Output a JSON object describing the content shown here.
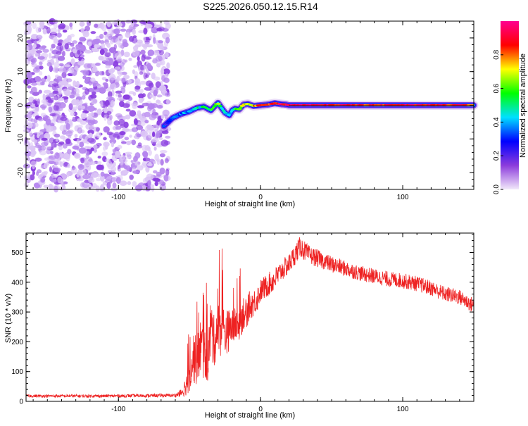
{
  "title": "S225.2026.050.12.15.R14",
  "chart_data": [
    {
      "type": "heatmap",
      "name": "spectrogram",
      "xlabel": "Height of straight line (km)",
      "ylabel": "Frequency (Hz)",
      "xlim": [
        -165,
        150
      ],
      "ylim": [
        -25,
        25
      ],
      "xticks": [
        -100,
        0,
        100
      ],
      "xtick_labels": [
        "-100",
        "0",
        "100"
      ],
      "yticks": [
        -20,
        -10,
        0,
        10,
        20
      ],
      "ytick_labels": [
        "-20",
        "-10",
        "0",
        "10",
        "20"
      ],
      "colorbar": {
        "label": "Normalized spectral amplitude",
        "range": [
          0,
          1
        ],
        "ticks": [
          0,
          0.2,
          0.4,
          0.6,
          0.8
        ],
        "tick_labels": [
          "0.0",
          "0.2",
          "0.4",
          "0.6",
          "0.8"
        ],
        "colors": [
          "#f2e8fa",
          "#8c3cdc",
          "#0000ff",
          "#00e0ff",
          "#00ff00",
          "#ffff00",
          "#ff0000",
          "#ff0090"
        ]
      },
      "noise_region": {
        "x_range": [
          -165,
          -65
        ],
        "y_range": [
          -25,
          25
        ],
        "level": 0.1
      },
      "signal_track": {
        "x": [
          -68,
          -62,
          -56,
          -50,
          -45,
          -40,
          -35,
          -30,
          -25,
          -22,
          -20,
          -18,
          -15,
          -12,
          -9,
          -5,
          0,
          5,
          10,
          15,
          18,
          20,
          30,
          50,
          80,
          100,
          120,
          150
        ],
        "freq": [
          -6.2,
          -3.8,
          -2.6,
          -1.8,
          -0.8,
          -0.4,
          -1.5,
          0.7,
          -2.2,
          -3.0,
          -1.5,
          -1.0,
          -1.2,
          0.2,
          0.4,
          -0.2,
          0.0,
          0.2,
          0.6,
          0.3,
          0.2,
          0.0,
          0.0,
          0.0,
          0.0,
          0.0,
          0.0,
          0.0
        ],
        "amplitude": [
          0.25,
          0.3,
          0.35,
          0.4,
          0.45,
          0.5,
          0.55,
          0.6,
          0.45,
          0.4,
          0.5,
          0.55,
          0.6,
          0.65,
          0.7,
          0.75,
          0.85,
          0.8,
          0.9,
          0.95,
          0.9,
          0.95,
          0.95,
          0.9,
          0.85,
          0.9,
          0.88,
          0.85
        ]
      }
    },
    {
      "type": "line",
      "name": "snr",
      "xlabel": "Height of straight line (km)",
      "ylabel": "SNR (10 * v/v)",
      "xlim": [
        -165,
        150
      ],
      "ylim": [
        0,
        565
      ],
      "xticks": [
        -100,
        0,
        100
      ],
      "xtick_labels": [
        "-100",
        "0",
        "100"
      ],
      "yticks": [
        0,
        100,
        200,
        300,
        400,
        500
      ],
      "ytick_labels": [
        "0",
        "100",
        "200",
        "300",
        "400",
        "500"
      ],
      "color": "#ee2222",
      "series_envelope": {
        "x": [
          -165,
          -110,
          -60,
          -55,
          -52,
          -50,
          -47,
          -45,
          -42,
          -40,
          -37,
          -35,
          -33,
          -31,
          -28,
          -25,
          -22,
          -20,
          -15,
          -12,
          -10,
          -8,
          -5,
          -2,
          0,
          5,
          10,
          15,
          20,
          25,
          28,
          30,
          32,
          35,
          40,
          45,
          50,
          60,
          70,
          80,
          90,
          100,
          110,
          120,
          130,
          140,
          150
        ],
        "y": [
          18,
          18,
          20,
          30,
          60,
          100,
          150,
          130,
          190,
          160,
          140,
          250,
          200,
          230,
          250,
          230,
          240,
          250,
          260,
          300,
          290,
          320,
          330,
          350,
          370,
          390,
          410,
          440,
          460,
          500,
          520,
          510,
          500,
          490,
          480,
          470,
          460,
          445,
          430,
          420,
          410,
          405,
          395,
          380,
          360,
          350,
          320
        ],
        "noise": [
          5,
          5,
          6,
          15,
          40,
          70,
          90,
          80,
          100,
          90,
          80,
          120,
          90,
          90,
          100,
          80,
          70,
          60,
          60,
          60,
          50,
          50,
          45,
          45,
          40,
          40,
          40,
          35,
          35,
          35,
          35,
          35,
          32,
          30,
          30,
          28,
          28,
          27,
          26,
          26,
          26,
          26,
          26,
          26,
          26,
          26,
          26
        ]
      }
    }
  ]
}
